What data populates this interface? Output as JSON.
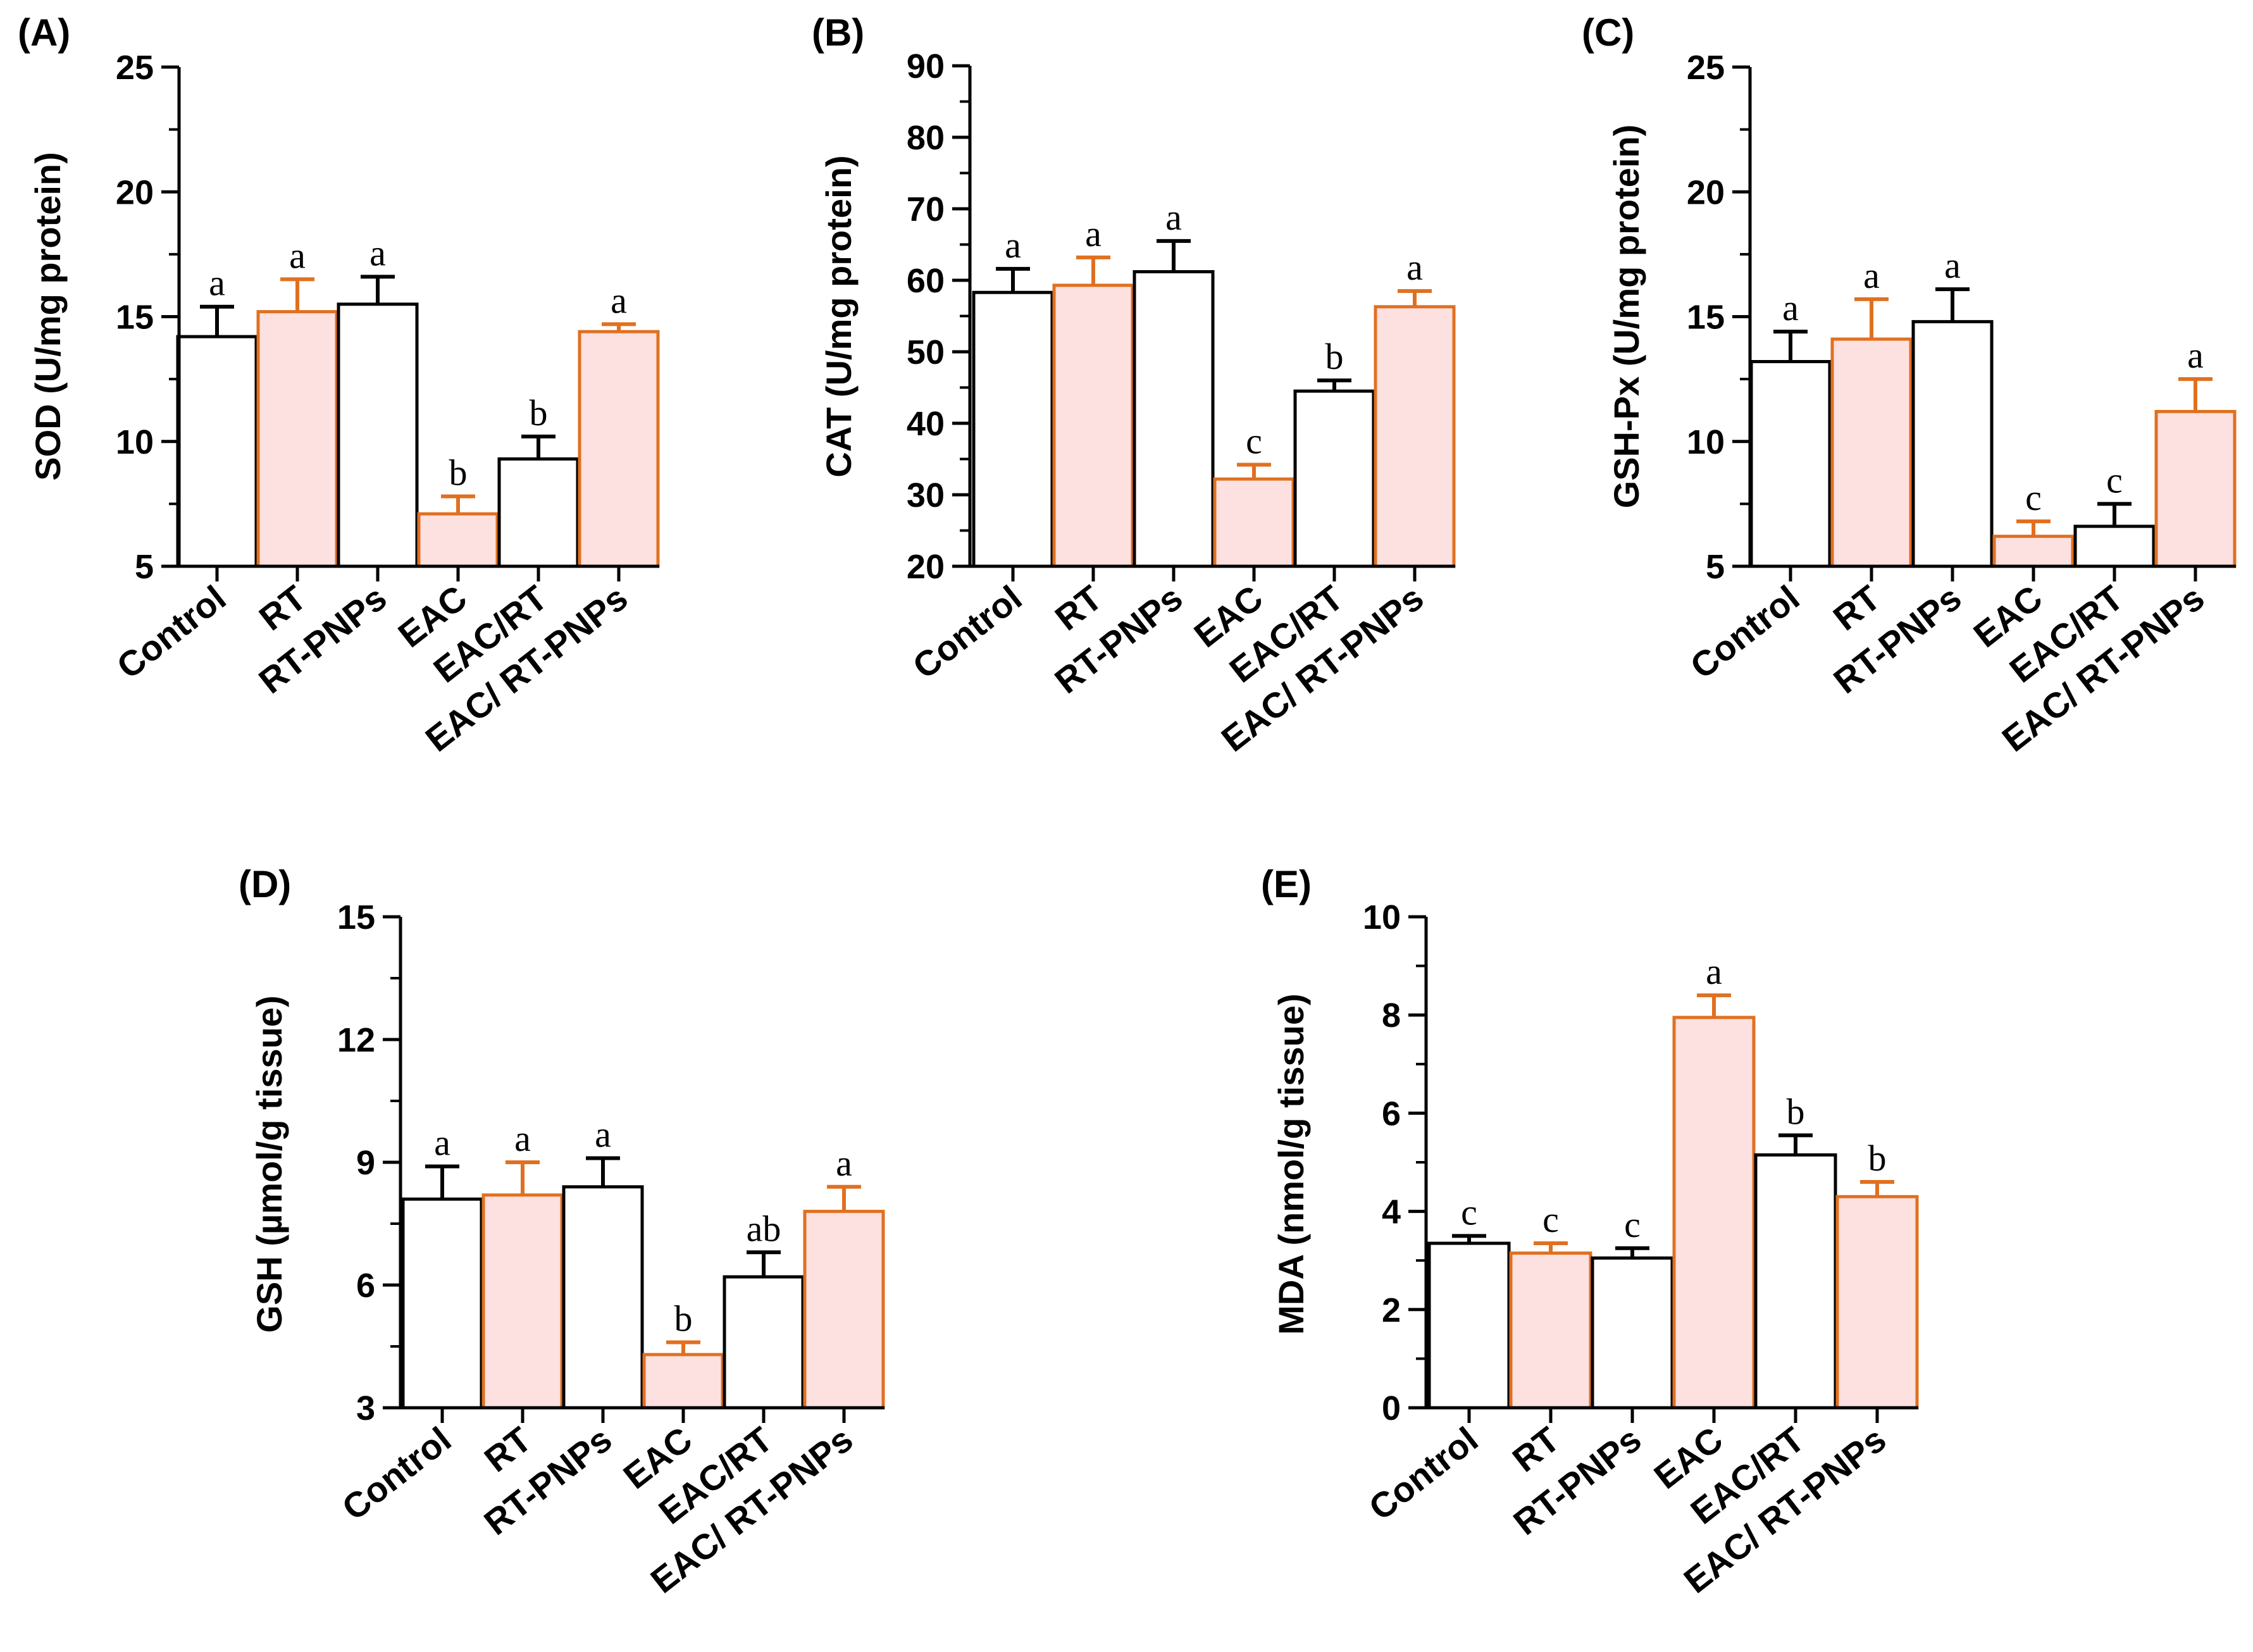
{
  "figure": {
    "colors": {
      "plain_fill": "#ffffff",
      "plain_stroke": "#000000",
      "accent_fill": "#fde0e0",
      "accent_stroke": "#e07020"
    },
    "style_pattern": [
      "plain",
      "accent",
      "plain",
      "accent",
      "plain",
      "accent"
    ]
  },
  "chart_data": [
    {
      "id": "A",
      "label": "(A)",
      "type": "bar",
      "ylabel": "SOD (U/mg protein)",
      "ylim": [
        5,
        25
      ],
      "yticks": [
        5,
        10,
        15,
        20,
        25
      ],
      "categories": [
        "Control",
        "RT",
        "RT-PNPs",
        "EAC",
        "EAC/RT",
        "EAC/ RT-PNPs"
      ],
      "values": [
        14.2,
        15.2,
        15.5,
        7.1,
        9.3,
        14.4
      ],
      "errors": [
        1.2,
        1.3,
        1.1,
        0.7,
        0.9,
        0.3
      ],
      "significance": [
        "a",
        "a",
        "a",
        "b",
        "b",
        "a"
      ]
    },
    {
      "id": "B",
      "label": "(B)",
      "type": "bar",
      "ylabel": "CAT (U/mg protein)",
      "ylim": [
        20,
        90
      ],
      "yticks": [
        20,
        30,
        40,
        50,
        60,
        70,
        80,
        90
      ],
      "categories": [
        "Control",
        "RT",
        "RT-PNPs",
        "EAC",
        "EAC/RT",
        "EAC/ RT-PNPs"
      ],
      "values": [
        58.3,
        59.3,
        61.2,
        32.2,
        44.5,
        56.3
      ],
      "errors": [
        3.3,
        3.9,
        4.3,
        2.0,
        1.5,
        2.2
      ],
      "significance": [
        "a",
        "a",
        "a",
        "c",
        "b",
        "a"
      ]
    },
    {
      "id": "C",
      "label": "(C)",
      "type": "bar",
      "ylabel": "GSH-Px (U/mg protein)",
      "ylim": [
        5,
        25
      ],
      "yticks": [
        5,
        10,
        15,
        20,
        25
      ],
      "categories": [
        "Control",
        "RT",
        "RT-PNPs",
        "EAC",
        "EAC/RT",
        "EAC/ RT-PNPs"
      ],
      "values": [
        13.2,
        14.1,
        14.8,
        6.2,
        6.6,
        11.2
      ],
      "errors": [
        1.2,
        1.6,
        1.3,
        0.6,
        0.9,
        1.3
      ],
      "significance": [
        "a",
        "a",
        "a",
        "c",
        "c",
        "a"
      ]
    },
    {
      "id": "D",
      "label": "(D)",
      "type": "bar",
      "ylabel": "GSH (µmol/g tissue)",
      "ylim": [
        3,
        15
      ],
      "yticks": [
        3,
        6,
        9,
        12,
        15
      ],
      "categories": [
        "Control",
        "RT",
        "RT-PNPs",
        "EAC",
        "EAC/RT",
        "EAC/ RT-PNPs"
      ],
      "values": [
        8.1,
        8.2,
        8.4,
        4.3,
        6.2,
        7.8
      ],
      "errors": [
        0.8,
        0.8,
        0.7,
        0.3,
        0.6,
        0.6
      ],
      "significance": [
        "a",
        "a",
        "a",
        "b",
        "ab",
        "a"
      ]
    },
    {
      "id": "E",
      "label": "(E)",
      "type": "bar",
      "ylabel": "MDA (nmol/g tissue)",
      "ylim": [
        0,
        10
      ],
      "yticks": [
        0,
        2,
        4,
        6,
        8,
        10
      ],
      "categories": [
        "Control",
        "RT",
        "RT-PNPs",
        "EAC",
        "EAC/RT",
        "EAC/ RT-PNPs"
      ],
      "values": [
        3.35,
        3.15,
        3.05,
        7.95,
        5.15,
        4.3
      ],
      "errors": [
        0.15,
        0.2,
        0.2,
        0.45,
        0.4,
        0.3
      ],
      "significance": [
        "c",
        "c",
        "c",
        "a",
        "b",
        "b"
      ]
    }
  ]
}
